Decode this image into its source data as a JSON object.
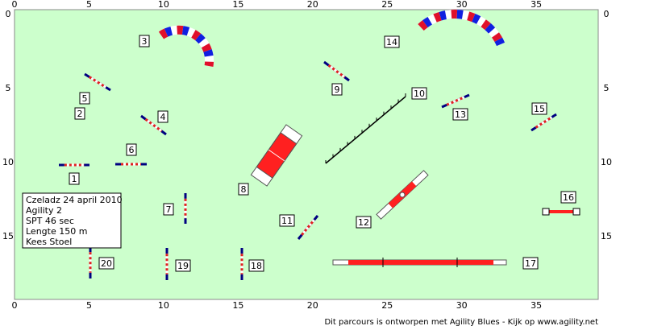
{
  "axes": {
    "x_ticks": [
      0,
      5,
      10,
      15,
      20,
      25,
      30,
      35
    ],
    "y_ticks": [
      0,
      5,
      10,
      15
    ]
  },
  "obstacle_numbers": [
    "1",
    "2",
    "3",
    "4",
    "5",
    "6",
    "7",
    "8",
    "9",
    "10",
    "11",
    "12",
    "13",
    "14",
    "15",
    "16",
    "17",
    "18",
    "19",
    "20"
  ],
  "info_box": [
    "Czeladz 24 april 2010",
    "Agility 2",
    "SPT 46 sec",
    "Lengte 150 m",
    "Kees Stoel"
  ],
  "footer": "Dit parcours is ontworpen met Agility Blues - Kijk op www.agility.net"
}
